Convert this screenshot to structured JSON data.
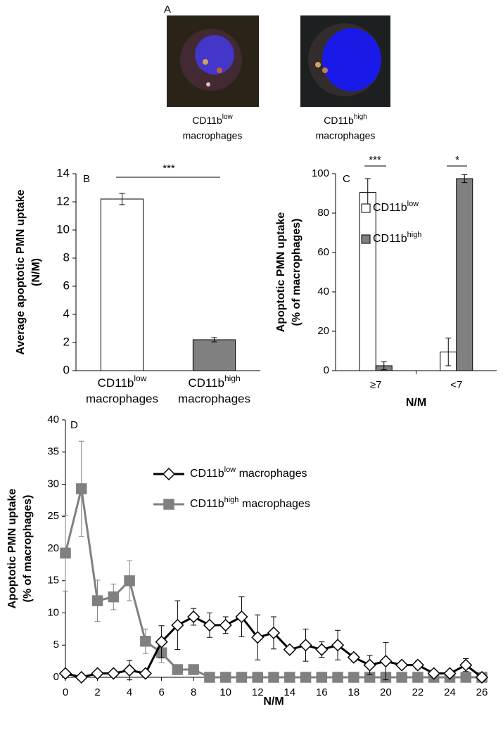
{
  "panel_a": {
    "panel": "A",
    "images": [
      {
        "text": "CD11b",
        "sup": "low",
        "line2": "macrophages"
      },
      {
        "text": "CD11b",
        "sup": "high",
        "line2": "macrophages"
      }
    ]
  },
  "chart_data": [
    {
      "type": "bar",
      "panel": "B",
      "ylabel": [
        "Average apoptotic PMN uptake",
        "(N/M)"
      ],
      "categories": [
        {
          "text": "CD11b",
          "sup": "low",
          "line2": "macrophages"
        },
        {
          "text": "CD11b",
          "sup": "high",
          "line2": "macrophages"
        }
      ],
      "values": [
        12.2,
        2.2
      ],
      "errors": [
        0.4,
        0.15
      ],
      "colors": [
        "#ffffff",
        "#808080"
      ],
      "ylim": [
        0,
        14
      ],
      "yticks": [
        0,
        2,
        4,
        6,
        8,
        10,
        12,
        14
      ],
      "annotations": [
        "***"
      ]
    },
    {
      "type": "grouped_bar",
      "panel": "C",
      "ylabel": [
        "Apoptotic PMN uptake",
        "(% of macrophages)"
      ],
      "xlabel": "N/M",
      "categories": [
        "≥7",
        "<7"
      ],
      "series": [
        {
          "name": {
            "text": "CD11b",
            "sup": "low"
          },
          "color": "#ffffff",
          "values": [
            90.5,
            9.5
          ],
          "errors": [
            7,
            7
          ]
        },
        {
          "name": {
            "text": "CD11b",
            "sup": "high"
          },
          "color": "#808080",
          "values": [
            2.5,
            97.5
          ],
          "errors": [
            2,
            2
          ]
        }
      ],
      "ylim": [
        0,
        100
      ],
      "yticks": [
        0,
        20,
        40,
        60,
        80,
        100
      ],
      "annotations": [
        "***",
        "*"
      ]
    },
    {
      "type": "line",
      "panel": "D",
      "ylabel": [
        "Apoptotic PMN uptake",
        "(% of macrophages)"
      ],
      "xlabel": "N/M",
      "x": [
        0,
        1,
        2,
        3,
        4,
        5,
        6,
        7,
        8,
        9,
        10,
        11,
        12,
        13,
        14,
        15,
        16,
        17,
        18,
        19,
        20,
        21,
        22,
        23,
        24,
        25,
        26
      ],
      "series": [
        {
          "name": {
            "text": "CD11b",
            "sup": "low",
            "after": " macrophages"
          },
          "color": "#000000",
          "marker": "diamond",
          "values": [
            0.6,
            0,
            0.6,
            0.6,
            1.1,
            0.6,
            5.5,
            8.1,
            9.4,
            8.1,
            8.1,
            9.4,
            6.2,
            6.9,
            4.3,
            5,
            4.3,
            5,
            3.1,
            1.9,
            2.5,
            1.9,
            1.9,
            0.6,
            0.6,
            1.9,
            0
          ],
          "errors": [
            0.3,
            0.3,
            0.4,
            0.5,
            1.5,
            0.5,
            2.5,
            3.8,
            1.3,
            1.9,
            1.3,
            3.1,
            3.5,
            2.5,
            0.4,
            2.5,
            1.2,
            2.3,
            0.6,
            1.5,
            2.9,
            0.5,
            0.6,
            0.5,
            0.5,
            1,
            0.3
          ]
        },
        {
          "name": {
            "text": "CD11b",
            "sup": "high",
            "after": " macrophages"
          },
          "color": "#808080",
          "marker": "square",
          "values": [
            19.3,
            29.3,
            11.9,
            12.5,
            15,
            5.6,
            3.8,
            1.2,
            1.2,
            0,
            0,
            0,
            0,
            0,
            0,
            0,
            0,
            0,
            0,
            0,
            0,
            0,
            0,
            0,
            0,
            0,
            0
          ],
          "errors": [
            5.9,
            7.4,
            3.2,
            2,
            3.1,
            1.9,
            1.5,
            0,
            0,
            0,
            0,
            0,
            0,
            0,
            0,
            0,
            0,
            0,
            0,
            0,
            0,
            0,
            0,
            0,
            0,
            0,
            0
          ]
        }
      ],
      "xlim": [
        0,
        26
      ],
      "xticks": [
        0,
        2,
        4,
        6,
        8,
        10,
        12,
        14,
        16,
        18,
        20,
        22,
        24,
        26
      ],
      "ylim": [
        0,
        40
      ],
      "yticks": [
        0,
        5,
        10,
        15,
        20,
        25,
        30,
        35,
        40
      ]
    }
  ]
}
